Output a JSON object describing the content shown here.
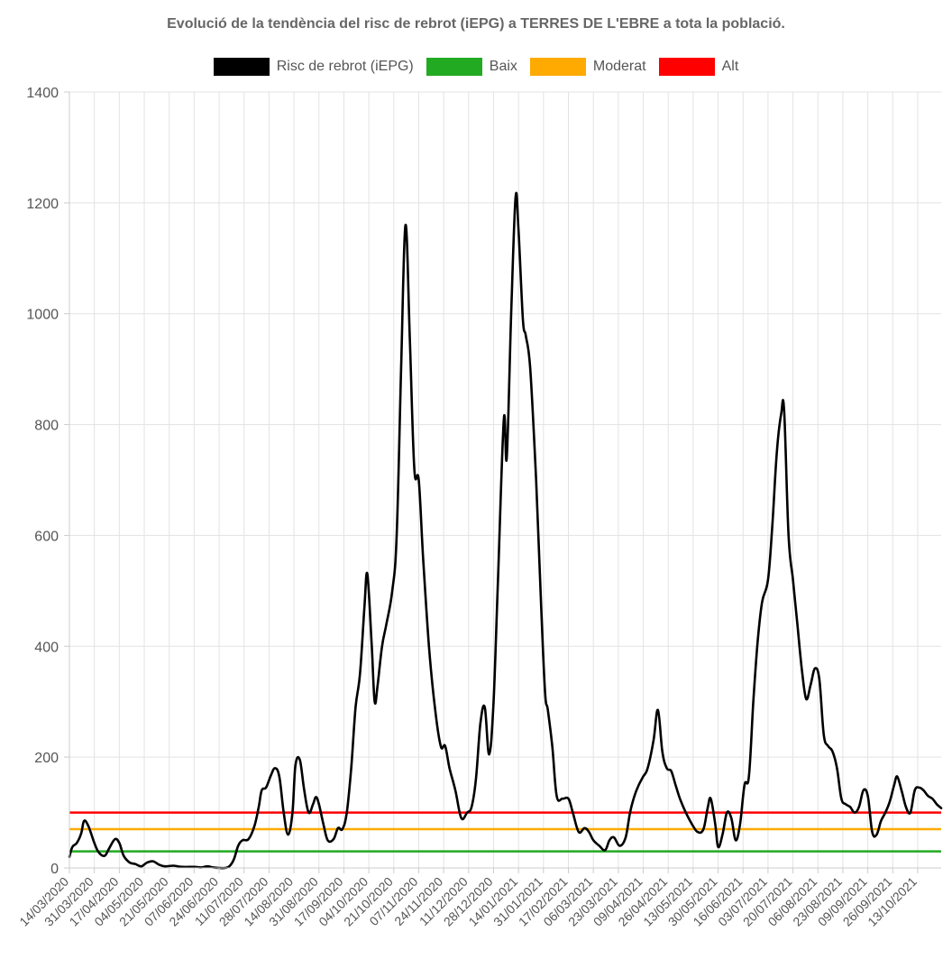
{
  "chart_data": {
    "type": "line",
    "title": "Evolució de la tendència del risc de rebrot (iEPG) a TERRES DE L'EBRE a tota la població.",
    "xlabel": "",
    "ylabel": "",
    "ylim": [
      0,
      1400
    ],
    "yticks": [
      0,
      200,
      400,
      600,
      800,
      1000,
      1200,
      1400
    ],
    "grid": true,
    "legend_placement": "top",
    "x_range": [
      "14/03/2020",
      "29/10/2021"
    ],
    "xticks": [
      "14/03/2020",
      "31/03/2020",
      "17/04/2020",
      "04/05/2020",
      "21/05/2020",
      "07/06/2020",
      "24/06/2020",
      "11/07/2020",
      "28/07/2020",
      "14/08/2020",
      "31/08/2020",
      "17/09/2020",
      "04/10/2020",
      "21/10/2020",
      "07/11/2020",
      "24/11/2020",
      "11/12/2020",
      "28/12/2020",
      "14/01/2021",
      "31/01/2021",
      "17/02/2021",
      "06/03/2021",
      "23/03/2021",
      "09/04/2021",
      "26/04/2021",
      "13/05/2021",
      "30/05/2021",
      "16/06/2021",
      "03/07/2021",
      "20/07/2021",
      "06/08/2021",
      "23/08/2021",
      "09/09/2021",
      "26/09/2021",
      "13/10/2021"
    ],
    "series": [
      {
        "name": "Risc de rebrot (iEPG)",
        "color": "#000000",
        "points": [
          [
            "14/03/2020",
            20
          ],
          [
            "16/03/2020",
            38
          ],
          [
            "19/03/2020",
            45
          ],
          [
            "22/03/2020",
            62
          ],
          [
            "24/03/2020",
            85
          ],
          [
            "27/03/2020",
            75
          ],
          [
            "31/03/2020",
            45
          ],
          [
            "03/04/2020",
            28
          ],
          [
            "07/04/2020",
            22
          ],
          [
            "10/04/2020",
            35
          ],
          [
            "14/04/2020",
            52
          ],
          [
            "17/04/2020",
            45
          ],
          [
            "20/04/2020",
            22
          ],
          [
            "24/04/2020",
            10
          ],
          [
            "28/04/2020",
            7
          ],
          [
            "02/05/2020",
            3
          ],
          [
            "06/05/2020",
            10
          ],
          [
            "10/05/2020",
            12
          ],
          [
            "14/05/2020",
            6
          ],
          [
            "18/05/2020",
            3
          ],
          [
            "24/05/2020",
            4
          ],
          [
            "30/05/2020",
            2
          ],
          [
            "07/06/2020",
            2
          ],
          [
            "12/06/2020",
            1
          ],
          [
            "16/06/2020",
            3
          ],
          [
            "20/06/2020",
            1
          ],
          [
            "24/06/2020",
            0
          ],
          [
            "28/06/2020",
            0
          ],
          [
            "01/07/2020",
            3
          ],
          [
            "04/07/2020",
            15
          ],
          [
            "07/07/2020",
            40
          ],
          [
            "10/07/2020",
            50
          ],
          [
            "14/07/2020",
            52
          ],
          [
            "18/07/2020",
            75
          ],
          [
            "21/07/2020",
            110
          ],
          [
            "23/07/2020",
            140
          ],
          [
            "26/07/2020",
            145
          ],
          [
            "29/07/2020",
            165
          ],
          [
            "01/08/2020",
            180
          ],
          [
            "04/08/2020",
            165
          ],
          [
            "07/08/2020",
            100
          ],
          [
            "10/08/2020",
            60
          ],
          [
            "13/08/2020",
            100
          ],
          [
            "15/08/2020",
            185
          ],
          [
            "18/08/2020",
            195
          ],
          [
            "21/08/2020",
            140
          ],
          [
            "24/08/2020",
            100
          ],
          [
            "27/08/2020",
            115
          ],
          [
            "29/08/2020",
            128
          ],
          [
            "31/08/2020",
            115
          ],
          [
            "03/09/2020",
            80
          ],
          [
            "06/09/2020",
            50
          ],
          [
            "10/09/2020",
            52
          ],
          [
            "13/09/2020",
            72
          ],
          [
            "16/09/2020",
            70
          ],
          [
            "19/09/2020",
            100
          ],
          [
            "22/09/2020",
            180
          ],
          [
            "25/09/2020",
            290
          ],
          [
            "28/09/2020",
            350
          ],
          [
            "01/10/2020",
            470
          ],
          [
            "03/10/2020",
            530
          ],
          [
            "06/10/2020",
            400
          ],
          [
            "08/10/2020",
            300
          ],
          [
            "10/10/2020",
            330
          ],
          [
            "13/10/2020",
            400
          ],
          [
            "16/10/2020",
            440
          ],
          [
            "20/10/2020",
            500
          ],
          [
            "23/10/2020",
            600
          ],
          [
            "26/10/2020",
            900
          ],
          [
            "29/10/2020",
            1160
          ],
          [
            "01/11/2020",
            950
          ],
          [
            "04/11/2020",
            720
          ],
          [
            "07/11/2020",
            700
          ],
          [
            "10/11/2020",
            560
          ],
          [
            "14/11/2020",
            400
          ],
          [
            "18/11/2020",
            290
          ],
          [
            "22/11/2020",
            220
          ],
          [
            "25/11/2020",
            220
          ],
          [
            "28/11/2020",
            180
          ],
          [
            "02/12/2020",
            140
          ],
          [
            "06/12/2020",
            90
          ],
          [
            "10/12/2020",
            100
          ],
          [
            "13/12/2020",
            110
          ],
          [
            "16/12/2020",
            160
          ],
          [
            "19/12/2020",
            260
          ],
          [
            "22/12/2020",
            290
          ],
          [
            "25/12/2020",
            205
          ],
          [
            "28/12/2020",
            300
          ],
          [
            "31/12/2020",
            520
          ],
          [
            "04/01/2021",
            810
          ],
          [
            "06/01/2021",
            740
          ],
          [
            "09/01/2021",
            1000
          ],
          [
            "12/01/2021",
            1210
          ],
          [
            "14/01/2021",
            1150
          ],
          [
            "17/01/2021",
            990
          ],
          [
            "19/01/2021",
            960
          ],
          [
            "22/01/2021",
            900
          ],
          [
            "26/01/2021",
            700
          ],
          [
            "29/01/2021",
            500
          ],
          [
            "01/02/2021",
            320
          ],
          [
            "03/02/2021",
            285
          ],
          [
            "06/02/2021",
            220
          ],
          [
            "09/02/2021",
            130
          ],
          [
            "13/02/2021",
            125
          ],
          [
            "17/02/2021",
            125
          ],
          [
            "20/02/2021",
            100
          ],
          [
            "24/02/2021",
            65
          ],
          [
            "28/02/2021",
            72
          ],
          [
            "03/03/2021",
            65
          ],
          [
            "06/03/2021",
            50
          ],
          [
            "10/03/2021",
            40
          ],
          [
            "14/03/2021",
            32
          ],
          [
            "17/03/2021",
            50
          ],
          [
            "20/03/2021",
            55
          ],
          [
            "24/03/2021",
            40
          ],
          [
            "28/03/2021",
            55
          ],
          [
            "31/03/2021",
            100
          ],
          [
            "03/04/2021",
            130
          ],
          [
            "06/04/2021",
            150
          ],
          [
            "09/04/2021",
            165
          ],
          [
            "12/04/2021",
            180
          ],
          [
            "16/04/2021",
            230
          ],
          [
            "19/04/2021",
            285
          ],
          [
            "22/04/2021",
            210
          ],
          [
            "25/04/2021",
            180
          ],
          [
            "28/04/2021",
            175
          ],
          [
            "01/05/2021",
            150
          ],
          [
            "04/05/2021",
            125
          ],
          [
            "08/05/2021",
            100
          ],
          [
            "12/05/2021",
            80
          ],
          [
            "16/05/2021",
            65
          ],
          [
            "20/05/2021",
            70
          ],
          [
            "23/05/2021",
            110
          ],
          [
            "25/05/2021",
            125
          ],
          [
            "28/05/2021",
            80
          ],
          [
            "30/05/2021",
            38
          ],
          [
            "02/06/2021",
            60
          ],
          [
            "05/06/2021",
            100
          ],
          [
            "08/06/2021",
            90
          ],
          [
            "11/06/2021",
            50
          ],
          [
            "14/06/2021",
            80
          ],
          [
            "17/06/2021",
            150
          ],
          [
            "20/06/2021",
            165
          ],
          [
            "23/06/2021",
            300
          ],
          [
            "26/06/2021",
            410
          ],
          [
            "29/06/2021",
            480
          ],
          [
            "03/07/2021",
            520
          ],
          [
            "06/07/2021",
            620
          ],
          [
            "09/07/2021",
            750
          ],
          [
            "12/07/2021",
            820
          ],
          [
            "14/07/2021",
            825
          ],
          [
            "17/07/2021",
            600
          ],
          [
            "20/07/2021",
            520
          ],
          [
            "23/07/2021",
            440
          ],
          [
            "26/07/2021",
            360
          ],
          [
            "29/07/2021",
            305
          ],
          [
            "01/08/2021",
            330
          ],
          [
            "04/08/2021",
            360
          ],
          [
            "07/08/2021",
            340
          ],
          [
            "10/08/2021",
            240
          ],
          [
            "13/08/2021",
            220
          ],
          [
            "16/08/2021",
            210
          ],
          [
            "19/08/2021",
            180
          ],
          [
            "22/08/2021",
            125
          ],
          [
            "25/08/2021",
            115
          ],
          [
            "28/08/2021",
            110
          ],
          [
            "31/08/2021",
            100
          ],
          [
            "03/09/2021",
            110
          ],
          [
            "06/09/2021",
            140
          ],
          [
            "09/09/2021",
            130
          ],
          [
            "12/09/2021",
            65
          ],
          [
            "15/09/2021",
            60
          ],
          [
            "18/09/2021",
            85
          ],
          [
            "21/09/2021",
            100
          ],
          [
            "24/09/2021",
            120
          ],
          [
            "27/09/2021",
            150
          ],
          [
            "29/09/2021",
            165
          ],
          [
            "02/10/2021",
            140
          ],
          [
            "05/10/2021",
            110
          ],
          [
            "08/10/2021",
            100
          ],
          [
            "11/10/2021",
            140
          ],
          [
            "14/10/2021",
            145
          ],
          [
            "17/10/2021",
            140
          ],
          [
            "20/10/2021",
            130
          ],
          [
            "23/10/2021",
            125
          ],
          [
            "26/10/2021",
            115
          ],
          [
            "29/10/2021",
            108
          ]
        ]
      },
      {
        "name": "Baix",
        "color": "#22aa22",
        "y": 30
      },
      {
        "name": "Moderat",
        "color": "#ffaa00",
        "y": 70
      },
      {
        "name": "Alt",
        "color": "#ff0000",
        "y": 100
      }
    ]
  }
}
